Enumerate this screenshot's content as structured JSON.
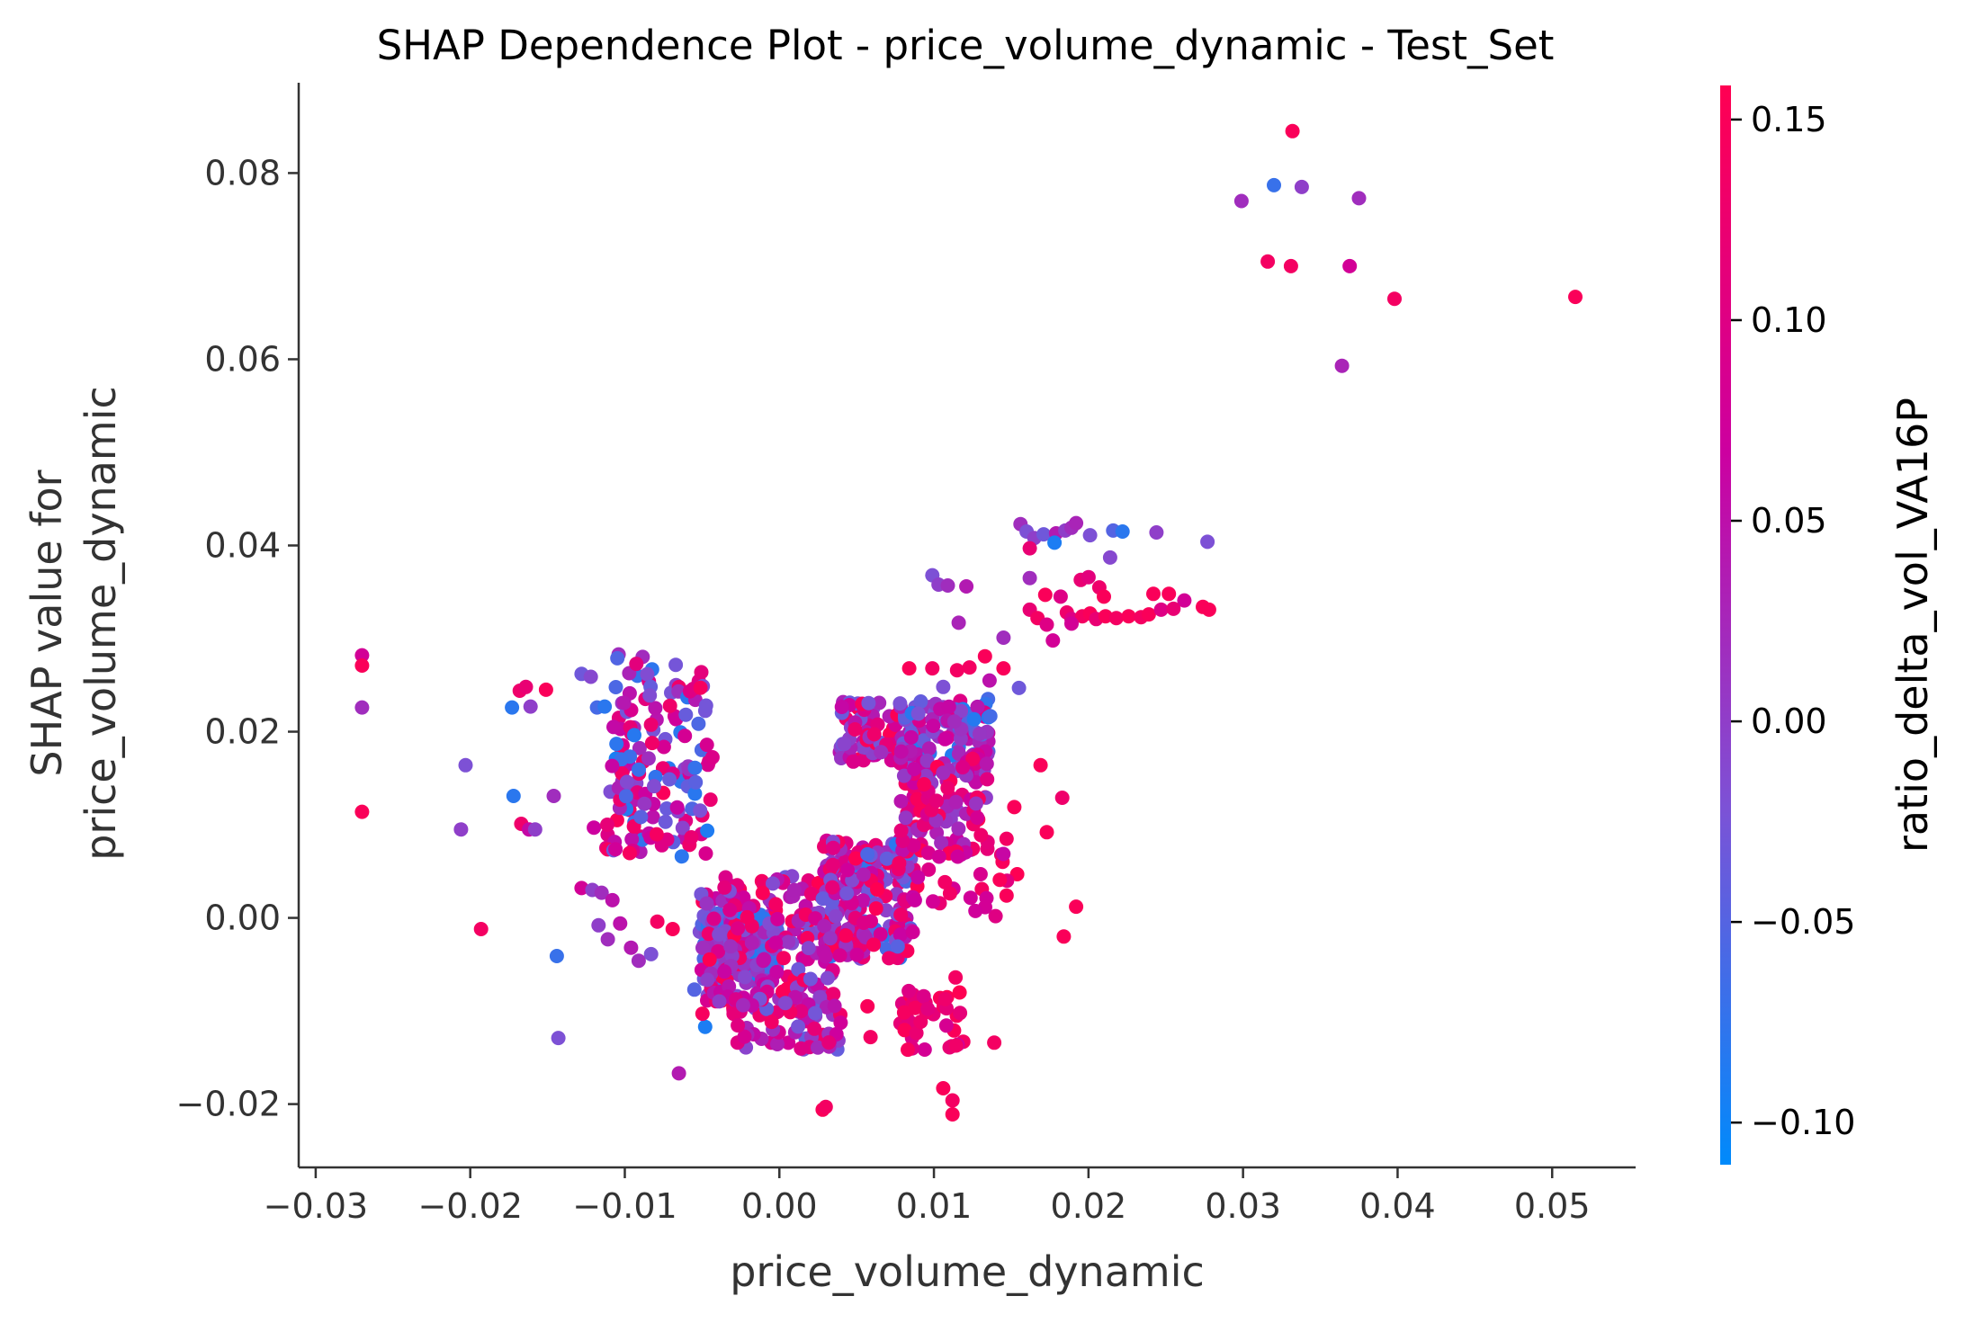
{
  "chart_data": {
    "type": "scatter",
    "title": "SHAP Dependence Plot - price_volume_dynamic - Test_Set",
    "xlabel": "price_volume_dynamic",
    "ylabel_lines": [
      "SHAP value for",
      "price_volume_dynamic"
    ],
    "colorbar_label": "ratio_delta_vol_VA16P",
    "xlim": [
      -0.0311,
      0.0554
    ],
    "ylim": [
      -0.0268,
      0.0897
    ],
    "x_ticks": [
      {
        "v": -0.03,
        "label": "−0.03"
      },
      {
        "v": -0.02,
        "label": "−0.02"
      },
      {
        "v": -0.01,
        "label": "−0.01"
      },
      {
        "v": 0.0,
        "label": "0.00"
      },
      {
        "v": 0.01,
        "label": "0.01"
      },
      {
        "v": 0.02,
        "label": "0.02"
      },
      {
        "v": 0.03,
        "label": "0.03"
      },
      {
        "v": 0.04,
        "label": "0.04"
      },
      {
        "v": 0.05,
        "label": "0.05"
      }
    ],
    "y_ticks": [
      {
        "v": -0.02,
        "label": "−0.02"
      },
      {
        "v": 0.0,
        "label": "0.00"
      },
      {
        "v": 0.02,
        "label": "0.02"
      },
      {
        "v": 0.04,
        "label": "0.04"
      },
      {
        "v": 0.06,
        "label": "0.06"
      },
      {
        "v": 0.08,
        "label": "0.08"
      }
    ],
    "colorbar": {
      "range": [
        -0.1105,
        0.1585
      ],
      "ticks": [
        {
          "v": 0.15,
          "label": "0.15"
        },
        {
          "v": 0.1,
          "label": "0.10"
        },
        {
          "v": 0.05,
          "label": "0.05"
        },
        {
          "v": 0.0,
          "label": "0.00"
        },
        {
          "v": -0.05,
          "label": "−0.05"
        },
        {
          "v": -0.1,
          "label": "−0.10"
        }
      ],
      "colors": [
        "#008afb",
        "#7c52d6",
        "#cc00a0",
        "#ff0052"
      ]
    },
    "axis_color": "#333333",
    "points": [
      [
        0.0332,
        0.0845,
        0.15
      ],
      [
        0.032,
        0.0787,
        -0.07
      ],
      [
        0.0338,
        0.0785,
        0.0
      ],
      [
        0.0375,
        0.0773,
        0.02
      ],
      [
        0.0299,
        0.077,
        0.02
      ],
      [
        0.0316,
        0.0705,
        0.14
      ],
      [
        0.0331,
        0.07,
        0.14
      ],
      [
        0.0369,
        0.07,
        0.08
      ],
      [
        0.0398,
        0.0665,
        0.14
      ],
      [
        0.0515,
        0.0667,
        0.15
      ],
      [
        0.0364,
        0.0593,
        0.03
      ],
      [
        0.0156,
        0.0423,
        0.02
      ],
      [
        0.016,
        0.0415,
        -0.02
      ],
      [
        0.0165,
        0.0408,
        0.0
      ],
      [
        0.0171,
        0.0412,
        -0.03
      ],
      [
        0.0179,
        0.0413,
        0.04
      ],
      [
        0.0185,
        0.0416,
        0.0
      ],
      [
        0.0189,
        0.0419,
        0.02
      ],
      [
        0.0192,
        0.0424,
        0.03
      ],
      [
        0.0201,
        0.0411,
        -0.02
      ],
      [
        0.0216,
        0.0416,
        -0.05
      ],
      [
        0.0222,
        0.0415,
        -0.08
      ],
      [
        0.0244,
        0.0414,
        0.0
      ],
      [
        0.0277,
        0.0404,
        -0.02
      ],
      [
        0.0178,
        0.0403,
        -0.09
      ],
      [
        0.0214,
        0.0387,
        -0.01
      ],
      [
        0.0099,
        0.0368,
        -0.02
      ],
      [
        0.0103,
        0.0358,
        0.0
      ],
      [
        0.0109,
        0.0357,
        0.02
      ],
      [
        0.0121,
        0.0356,
        0.04
      ],
      [
        0.0162,
        0.0397,
        0.12
      ],
      [
        0.0162,
        0.0365,
        0.02
      ],
      [
        0.0172,
        0.0347,
        0.15
      ],
      [
        0.0182,
        0.0345,
        0.1
      ],
      [
        0.0195,
        0.0363,
        0.12
      ],
      [
        0.02,
        0.0366,
        0.11
      ],
      [
        0.0207,
        0.0355,
        0.13
      ],
      [
        0.021,
        0.0345,
        0.15
      ],
      [
        0.0242,
        0.0348,
        0.15
      ],
      [
        0.0252,
        0.0348,
        0.15
      ],
      [
        0.0262,
        0.0341,
        0.08
      ],
      [
        0.0274,
        0.0334,
        0.15
      ],
      [
        0.0278,
        0.0331,
        0.15
      ],
      [
        0.0162,
        0.0331,
        0.12
      ],
      [
        0.0167,
        0.0322,
        0.14
      ],
      [
        0.0173,
        0.0315,
        0.1
      ],
      [
        0.0177,
        0.0298,
        0.08
      ],
      [
        0.0186,
        0.0328,
        0.13
      ],
      [
        0.0189,
        0.0321,
        0.1
      ],
      [
        0.0196,
        0.0324,
        0.14
      ],
      [
        0.0201,
        0.0327,
        0.15
      ],
      [
        0.0205,
        0.0321,
        0.12
      ],
      [
        0.0211,
        0.0324,
        0.15
      ],
      [
        0.0218,
        0.0322,
        0.14
      ],
      [
        0.0226,
        0.0324,
        0.15
      ],
      [
        0.0234,
        0.0323,
        0.14
      ],
      [
        0.0239,
        0.0326,
        0.15
      ],
      [
        0.0247,
        0.0331,
        0.1
      ],
      [
        0.0255,
        0.0332,
        0.12
      ],
      [
        0.0189,
        0.0316,
        0.08
      ],
      [
        0.0116,
        0.0317,
        0.03
      ],
      [
        0.0145,
        0.0301,
        0.02
      ],
      [
        0.0136,
        0.0255,
        0.05
      ],
      [
        0.0133,
        0.0281,
        0.15
      ],
      [
        0.0145,
        0.0268,
        0.15
      ],
      [
        0.0155,
        0.0247,
        -0.03
      ],
      [
        0.0123,
        0.0269,
        0.14
      ],
      [
        0.0115,
        0.0266,
        0.14
      ],
      [
        0.0099,
        0.0268,
        0.14
      ],
      [
        0.0084,
        0.0268,
        0.15
      ],
      [
        0.0106,
        0.0248,
        -0.02
      ],
      [
        0.0135,
        0.0235,
        -0.06
      ],
      [
        0.0117,
        0.0233,
        0.1
      ],
      [
        -0.027,
        0.0282,
        0.08
      ],
      [
        -0.027,
        0.0271,
        0.15
      ],
      [
        -0.027,
        0.0226,
        0.02
      ],
      [
        -0.027,
        0.0114,
        0.15
      ],
      [
        -0.0203,
        0.0164,
        -0.02
      ],
      [
        -0.0206,
        0.0095,
        0.0
      ],
      [
        -0.0193,
        -0.0012,
        0.14
      ],
      [
        -0.0144,
        -0.0041,
        -0.07
      ],
      [
        -0.0143,
        -0.0129,
        -0.02
      ],
      [
        -0.0173,
        0.0226,
        -0.08
      ],
      [
        -0.0168,
        0.0244,
        0.13
      ],
      [
        -0.0164,
        0.0248,
        0.12
      ],
      [
        -0.0161,
        0.0227,
        0.0
      ],
      [
        -0.0151,
        0.0245,
        0.15
      ],
      [
        -0.0128,
        0.0262,
        -0.03
      ],
      [
        -0.0122,
        0.0259,
        -0.01
      ],
      [
        -0.0118,
        0.0226,
        -0.06
      ],
      [
        -0.0113,
        0.0227,
        -0.08
      ],
      [
        -0.0104,
        0.0283,
        0.02
      ],
      [
        -0.0172,
        0.0131,
        -0.08
      ],
      [
        -0.0167,
        0.0101,
        0.13
      ],
      [
        -0.0162,
        0.0095,
        0.06
      ],
      [
        -0.0158,
        0.0095,
        0.0
      ],
      [
        -0.0146,
        0.0131,
        0.02
      ],
      [
        -0.012,
        0.0097,
        0.07
      ],
      [
        -0.0105,
        0.0105,
        0.15
      ],
      [
        -0.0097,
        0.0116,
        0.13
      ],
      [
        -0.009,
        0.0071,
        0.04
      ],
      [
        -0.0076,
        0.0078,
        0.1
      ],
      [
        -0.0128,
        0.0032,
        0.08
      ],
      [
        -0.0121,
        0.003,
        0.0
      ],
      [
        -0.0115,
        0.0027,
        0.02
      ],
      [
        -0.0108,
        0.0019,
        0.05
      ],
      [
        -0.0117,
        -0.0008,
        0.0
      ],
      [
        -0.0111,
        -0.0023,
        0.02
      ],
      [
        -0.0103,
        -0.0006,
        0.05
      ],
      [
        -0.0096,
        -0.0032,
        0.04
      ],
      [
        -0.0091,
        -0.0046,
        0.02
      ],
      [
        -0.0083,
        -0.0039,
        -0.02
      ],
      [
        -0.0079,
        -0.0004,
        0.14
      ],
      [
        -0.0069,
        -0.0012,
        0.15
      ],
      [
        -0.0065,
        -0.0167,
        0.04
      ],
      [
        -0.0055,
        -0.0077,
        -0.05
      ],
      [
        -0.0048,
        -0.0117,
        -0.09
      ],
      [
        0.0028,
        -0.0206,
        0.15
      ],
      [
        0.003,
        -0.0203,
        0.14
      ],
      [
        0.0112,
        -0.0211,
        0.15
      ],
      [
        0.0106,
        -0.0183,
        0.15
      ],
      [
        0.0112,
        -0.0196,
        0.14
      ],
      [
        0.0059,
        -0.0128,
        0.14
      ],
      [
        0.0084,
        -0.0088,
        0.15
      ],
      [
        0.0104,
        -0.0086,
        0.15
      ],
      [
        0.0113,
        -0.0121,
        0.15
      ],
      [
        0.0119,
        -0.0133,
        0.14
      ],
      [
        0.0139,
        -0.0134,
        0.14
      ],
      [
        0.0184,
        -0.002,
        0.15
      ],
      [
        0.0192,
        0.0012,
        0.15
      ],
      [
        0.0169,
        0.0164,
        0.15
      ],
      [
        0.0183,
        0.0129,
        0.13
      ],
      [
        0.0173,
        0.0092,
        0.15
      ],
      [
        0.0152,
        0.0119,
        0.15
      ],
      [
        0.0147,
        0.0085,
        0.14
      ],
      [
        0.0131,
        0.0031,
        0.14
      ],
      [
        0.0147,
        0.0024,
        0.15
      ],
      [
        0.0062,
        -0.0025,
        0.12
      ],
      [
        0.0087,
        0.0052,
        0.14
      ],
      [
        0.0057,
        -0.0095,
        0.15
      ],
      [
        0.0114,
        -0.0064,
        0.14
      ]
    ],
    "clusters": [
      [
        -0.0108,
        -0.0045,
        0.0156,
        0.0284,
        -0.1,
        0.15,
        70,
        11
      ],
      [
        -0.0112,
        -0.0042,
        0.0065,
        0.0175,
        -0.1,
        0.15,
        80,
        12
      ],
      [
        -0.0052,
        -0.0001,
        -0.0068,
        0.0005,
        -0.1,
        0.06,
        170,
        13
      ],
      [
        -0.0051,
        0.0035,
        -0.0105,
        0.0045,
        -0.03,
        0.16,
        190,
        14
      ],
      [
        -0.003,
        0.004,
        -0.0142,
        -0.0085,
        -0.04,
        0.14,
        60,
        15
      ],
      [
        0.0028,
        0.0087,
        -0.0045,
        0.0085,
        -0.08,
        0.16,
        190,
        16
      ],
      [
        0.0039,
        0.0094,
        0.0162,
        0.0232,
        -0.04,
        0.16,
        80,
        17
      ],
      [
        0.0078,
        0.0137,
        0.0155,
        0.0236,
        -0.09,
        0.1,
        90,
        18
      ],
      [
        0.0077,
        0.0135,
        0.0068,
        0.0172,
        0.0,
        0.16,
        100,
        19
      ],
      [
        0.0078,
        0.0117,
        -0.0142,
        -0.0075,
        0.08,
        0.16,
        35,
        20
      ],
      [
        0.0077,
        0.0154,
        0.0,
        0.0075,
        0.06,
        0.16,
        30,
        21
      ]
    ]
  }
}
